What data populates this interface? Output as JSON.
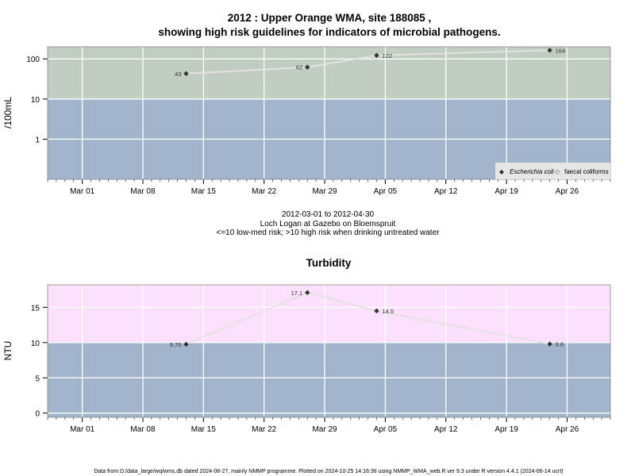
{
  "header": {
    "title_line1": "2012 : Upper Orange WMA, site 188085 ,",
    "title_line2": "showing high risk guidelines for indicators of microbial pathogens."
  },
  "caption": {
    "date_range": "2012-03-01 to 2012-04-30",
    "location": "Loch Logan at Gazebo on Bloemspruit",
    "guideline": "<=10 low-med risk; >10 high risk when drinking untreated water"
  },
  "footer": {
    "text": "Data from D:/data_large/wq/wms.db dated 2024-08-27, mainly NMMP programme. Plotted on 2024-10-25 14:16:38 using NMMP_WMA_web.R ver 9.3 under R version 4.4.1 (2024-06-14 ucrt)"
  },
  "colors": {
    "high_risk_micro": "#c2cdc1",
    "low_risk": "#a2b4cc",
    "high_risk_turbidity": "#fde0fb",
    "line": "#e3e3e3",
    "point": "#333333",
    "legend_bg": "#e6e6e6"
  },
  "chart_data": [
    {
      "type": "line",
      "title": "",
      "ylabel": "/100mL",
      "xlabel": "",
      "scale": "log10",
      "ylim": [
        0.1,
        200
      ],
      "threshold": 10,
      "xlim": [
        "2012-02-26",
        "2012-05-01"
      ],
      "x_ticks": [
        "Mar 01",
        "Mar 08",
        "Mar 15",
        "Mar 22",
        "Mar 29",
        "Apr 05",
        "Apr 12",
        "Apr 19",
        "Apr 26"
      ],
      "x_tick_dates": [
        "2012-03-01",
        "2012-03-08",
        "2012-03-15",
        "2012-03-22",
        "2012-03-29",
        "2012-04-05",
        "2012-04-12",
        "2012-04-19",
        "2012-04-26"
      ],
      "y_ticks": [
        "1",
        "10",
        "100"
      ],
      "y_tick_values": [
        1,
        10,
        100
      ],
      "legend": {
        "position": "bottom-right",
        "entries": [
          "Escherichia coli",
          "faecal coliforms"
        ]
      },
      "series": [
        {
          "name": "Escherichia coli",
          "x": [
            "2012-03-13",
            "2012-03-27",
            "2012-04-04",
            "2012-04-24"
          ],
          "values": [
            43,
            62,
            122,
            164
          ],
          "labels": [
            "43",
            "62",
            "122",
            "164"
          ]
        }
      ],
      "grid": true
    },
    {
      "type": "line",
      "title": "Turbidity",
      "ylabel": "NTU",
      "xlabel": "",
      "ylim": [
        -0.6,
        18.2
      ],
      "threshold": 10,
      "xlim": [
        "2012-02-26",
        "2012-05-01"
      ],
      "x_ticks": [
        "Mar 01",
        "Mar 08",
        "Mar 15",
        "Mar 22",
        "Mar 29",
        "Apr 05",
        "Apr 12",
        "Apr 19",
        "Apr 26"
      ],
      "x_tick_dates": [
        "2012-03-01",
        "2012-03-08",
        "2012-03-15",
        "2012-03-22",
        "2012-03-29",
        "2012-04-05",
        "2012-04-12",
        "2012-04-19",
        "2012-04-26"
      ],
      "y_ticks": [
        "0",
        "5",
        "10",
        "15"
      ],
      "y_tick_values": [
        0,
        5,
        10,
        15
      ],
      "series": [
        {
          "name": "",
          "x": [
            "2012-03-13",
            "2012-03-27",
            "2012-04-04",
            "2012-04-24"
          ],
          "values": [
            9.76,
            17.1,
            14.5,
            9.8
          ],
          "labels": [
            "9.76",
            "17.1",
            "14.5",
            "9.8"
          ]
        }
      ],
      "grid": true
    }
  ]
}
